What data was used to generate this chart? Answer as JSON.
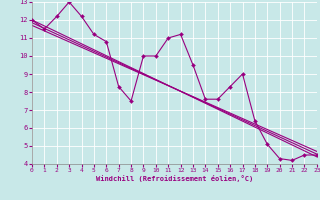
{
  "xlabel": "Windchill (Refroidissement éolien,°C)",
  "bg_color": "#c8e8e8",
  "line_color": "#990080",
  "grid_color": "#b0d8d8",
  "xlim": [
    0,
    23
  ],
  "ylim": [
    4,
    13
  ],
  "yticks": [
    4,
    5,
    6,
    7,
    8,
    9,
    10,
    11,
    12,
    13
  ],
  "xticks": [
    0,
    1,
    2,
    3,
    4,
    5,
    6,
    7,
    8,
    9,
    10,
    11,
    12,
    13,
    14,
    15,
    16,
    17,
    18,
    19,
    20,
    21,
    22,
    23
  ],
  "main_x": [
    0,
    1,
    2,
    3,
    4,
    5,
    6,
    7,
    8,
    9,
    10,
    11,
    12,
    13,
    14,
    15,
    16,
    17,
    18,
    19,
    20,
    21,
    22,
    23
  ],
  "main_y": [
    12.0,
    11.5,
    12.2,
    13.0,
    12.2,
    11.2,
    10.8,
    8.3,
    7.5,
    10.0,
    10.0,
    11.0,
    11.2,
    9.5,
    7.6,
    7.6,
    8.3,
    9.0,
    6.4,
    5.1,
    4.3,
    4.2,
    4.5,
    4.5
  ],
  "trend1": {
    "x": [
      0,
      23
    ],
    "y": [
      12.0,
      4.4
    ]
  },
  "trend2": {
    "x": [
      0,
      23
    ],
    "y": [
      11.85,
      4.55
    ]
  },
  "trend3": {
    "x": [
      0,
      23
    ],
    "y": [
      11.7,
      4.7
    ]
  }
}
